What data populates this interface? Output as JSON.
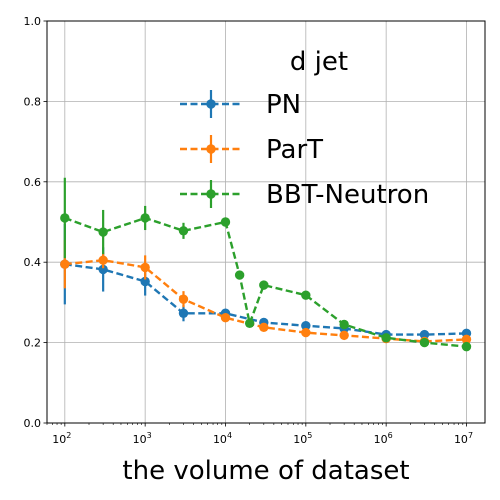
{
  "chart_data": {
    "type": "line",
    "title": "",
    "xlabel": "the volume of dataset",
    "ylabel": "",
    "xscale": "log",
    "xlim": [
      60,
      17000000
    ],
    "ylim": [
      0.0,
      1.0
    ],
    "grid": true,
    "legend": {
      "title": "d jet",
      "placement": "top-right"
    },
    "y_ticks": [
      "0.0",
      "0.2",
      "0.4",
      "0.6",
      "0.8",
      "1.0"
    ],
    "x_ticks": [
      {
        "value": 100,
        "base": "10",
        "exp": "2"
      },
      {
        "value": 1000,
        "base": "10",
        "exp": "3"
      },
      {
        "value": 10000,
        "base": "10",
        "exp": "4"
      },
      {
        "value": 100000,
        "base": "10",
        "exp": "5"
      },
      {
        "value": 1000000,
        "base": "10",
        "exp": "6"
      },
      {
        "value": 10000000,
        "base": "10",
        "exp": "7"
      }
    ],
    "series": [
      {
        "name": "PN",
        "color": "#1f77b4",
        "x": [
          100,
          300,
          1000,
          3000,
          10000,
          30000,
          100000,
          300000,
          1000000,
          3000000,
          10000000
        ],
        "y": [
          0.395,
          0.382,
          0.352,
          0.273,
          0.273,
          0.25,
          0.242,
          0.235,
          0.22,
          0.22,
          0.223
        ],
        "err": [
          0.1,
          0.055,
          0.035,
          0.02,
          0.01,
          0.01,
          0.008,
          0.008,
          0.008,
          0.008,
          0.008
        ]
      },
      {
        "name": "ParT",
        "color": "#ff7f0e",
        "x": [
          100,
          300,
          1000,
          3000,
          10000,
          30000,
          100000,
          300000,
          1000000,
          3000000,
          10000000
        ],
        "y": [
          0.395,
          0.405,
          0.387,
          0.308,
          0.262,
          0.238,
          0.225,
          0.218,
          0.21,
          0.203,
          0.208
        ],
        "err": [
          0.06,
          0.02,
          0.03,
          0.02,
          0.01,
          0.01,
          0.008,
          0.008,
          0.008,
          0.008,
          0.008
        ]
      },
      {
        "name": "BBT-Neutron",
        "color": "#2ca02c",
        "x": [
          100,
          300,
          1000,
          3000,
          10000,
          15000,
          20000,
          30000,
          100000,
          300000,
          1000000,
          3000000,
          10000000
        ],
        "y": [
          0.51,
          0.475,
          0.51,
          0.478,
          0.5,
          0.368,
          0.248,
          0.343,
          0.318,
          0.245,
          0.212,
          0.2,
          0.19
        ],
        "err": [
          0.1,
          0.055,
          0.03,
          0.02,
          0.01,
          0.008,
          0.008,
          0.008,
          0.008,
          0.008,
          0.008,
          0.008,
          0.008
        ]
      }
    ]
  }
}
